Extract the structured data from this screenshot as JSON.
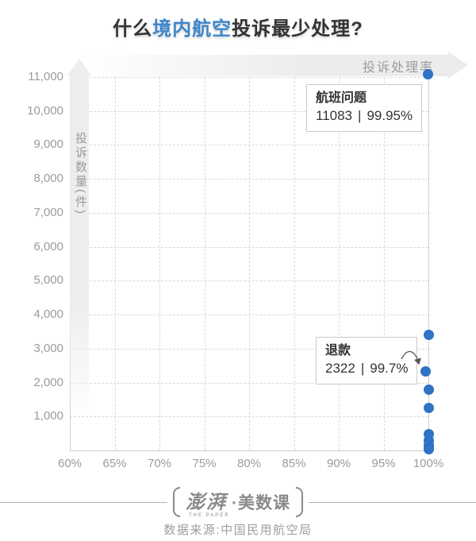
{
  "title": {
    "prefix": "什么",
    "highlight": "境内航空",
    "suffix": "投诉最少处理?"
  },
  "colors": {
    "accent_blue": "#3e86cb",
    "dot_blue": "#2f72c6",
    "grid": "#d9d9d9",
    "axis_text": "#9b9b9b",
    "band_bg": "#ececec",
    "title_text": "#333333",
    "footer_text": "#8e8e8e"
  },
  "chart_data": {
    "type": "scatter",
    "title": "什么境内航空投诉最少处理?",
    "xlabel": "投诉处理率",
    "ylabel": "投诉数量(件)",
    "xlim": [
      60,
      100
    ],
    "ylim": [
      0,
      11000
    ],
    "grid": "dashed",
    "legend": "none",
    "x_ticks": [
      {
        "label": "60%",
        "value": 60
      },
      {
        "label": "65%",
        "value": 65
      },
      {
        "label": "70%",
        "value": 70
      },
      {
        "label": "75%",
        "value": 75
      },
      {
        "label": "80%",
        "value": 80
      },
      {
        "label": "85%",
        "value": 85
      },
      {
        "label": "90%",
        "value": 90
      },
      {
        "label": "95%",
        "value": 95
      },
      {
        "label": "100%",
        "value": 100
      }
    ],
    "y_ticks": [
      {
        "label": "1,000",
        "value": 1000
      },
      {
        "label": "2,000",
        "value": 2000
      },
      {
        "label": "3,000",
        "value": 3000
      },
      {
        "label": "4,000",
        "value": 4000
      },
      {
        "label": "5,000",
        "value": 5000
      },
      {
        "label": "6,000",
        "value": 6000
      },
      {
        "label": "7,000",
        "value": 7000
      },
      {
        "label": "8,000",
        "value": 8000
      },
      {
        "label": "9,000",
        "value": 9000
      },
      {
        "label": "10,000",
        "value": 10000
      },
      {
        "label": "11,000",
        "value": 11000
      }
    ],
    "points": [
      {
        "label": "航班问题",
        "count": 11083,
        "rate": 99.95
      },
      {
        "label": "",
        "count": 3400,
        "rate": 100
      },
      {
        "label": "退款",
        "count": 2322,
        "rate": 99.7
      },
      {
        "label": "",
        "count": 1800,
        "rate": 100
      },
      {
        "label": "",
        "count": 1250,
        "rate": 100
      },
      {
        "label": "",
        "count": 480,
        "rate": 100
      },
      {
        "label": "",
        "count": 290,
        "rate": 100
      },
      {
        "label": "",
        "count": 160,
        "rate": 100
      },
      {
        "label": "",
        "count": 80,
        "rate": 100
      },
      {
        "label": "",
        "count": 30,
        "rate": 100
      }
    ],
    "annotations": [
      {
        "name": "航班问题",
        "count_text": "11083",
        "divider": "|",
        "rate_text": "99.95%"
      },
      {
        "name": "退款",
        "count_text": "2322",
        "divider": "|",
        "rate_text": "99.7%"
      }
    ]
  },
  "footer": {
    "logo_script": "澎湃",
    "logo_sub": "THE PAPER",
    "logo_rest": "·美数课",
    "source": "数据来源:中国民用航空局"
  }
}
